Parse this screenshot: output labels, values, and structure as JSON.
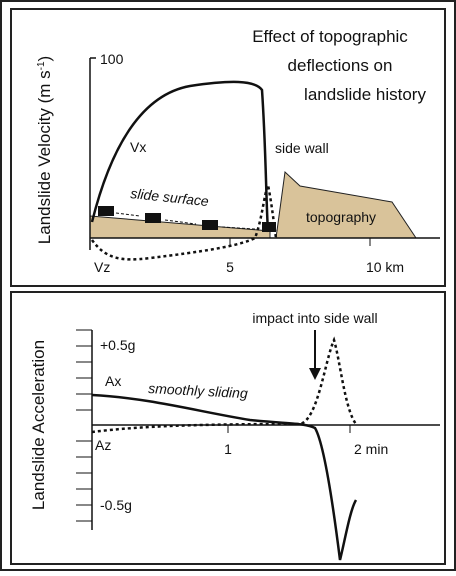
{
  "top_panel": {
    "title_lines": [
      "Effect of topographic",
      "deflections on",
      "landslide history"
    ],
    "y_axis_label": "Landslide Velocity (m s",
    "y_axis_unit_exp": "-1",
    "y_axis_label_end": ")",
    "y_tick": "100",
    "x_ticks": [
      "5",
      "10 km"
    ],
    "labels": {
      "vx": "Vx",
      "vz": "Vz",
      "side_wall": "side wall",
      "slide_surface": "slide surface",
      "topography": "topography"
    }
  },
  "bottom_panel": {
    "y_axis_label": "Landslide Acceleration",
    "y_ticks": [
      "+0.5g",
      "-0.5g"
    ],
    "x_ticks": [
      "1",
      "2 min"
    ],
    "labels": {
      "ax": "Ax",
      "az": "Az",
      "smoothly_sliding": "smoothly sliding",
      "impact": "impact into side wall"
    }
  }
}
